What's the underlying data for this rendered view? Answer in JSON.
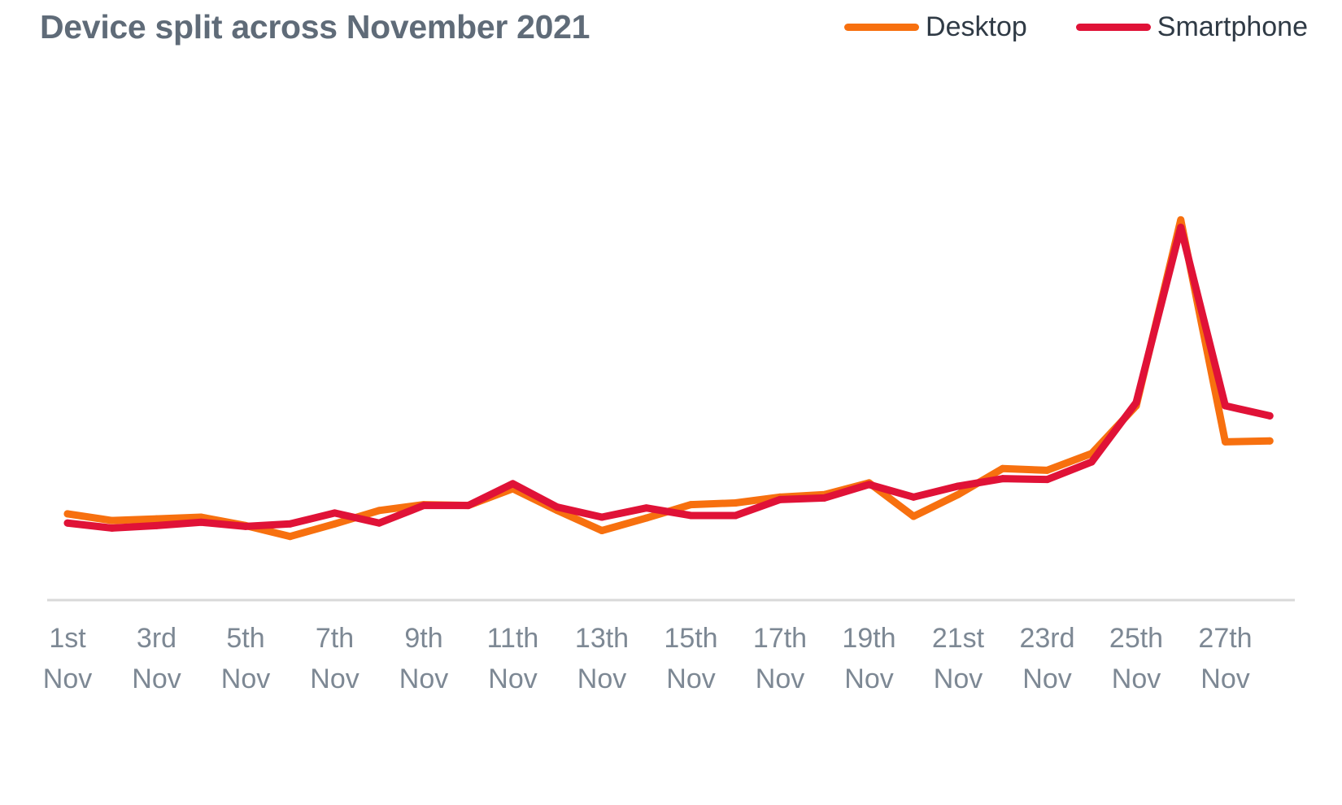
{
  "chart_data": {
    "type": "line",
    "title": "Device split across November 2021",
    "xlabel": "",
    "ylabel": "",
    "legend_position": "top-right",
    "grid": false,
    "x": [
      1,
      2,
      3,
      4,
      5,
      6,
      7,
      8,
      9,
      10,
      11,
      12,
      13,
      14,
      15,
      16,
      17,
      18,
      19,
      20,
      21,
      22,
      23,
      24,
      25,
      26,
      27,
      28
    ],
    "tick_labels": [
      {
        "day": 1,
        "line1": "1st",
        "line2": "Nov"
      },
      {
        "day": 3,
        "line1": "3rd",
        "line2": "Nov"
      },
      {
        "day": 5,
        "line1": "5th",
        "line2": "Nov"
      },
      {
        "day": 7,
        "line1": "7th",
        "line2": "Nov"
      },
      {
        "day": 9,
        "line1": "9th",
        "line2": "Nov"
      },
      {
        "day": 11,
        "line1": "11th",
        "line2": "Nov"
      },
      {
        "day": 13,
        "line1": "13th",
        "line2": "Nov"
      },
      {
        "day": 15,
        "line1": "15th",
        "line2": "Nov"
      },
      {
        "day": 17,
        "line1": "17th",
        "line2": "Nov"
      },
      {
        "day": 19,
        "line1": "19th",
        "line2": "Nov"
      },
      {
        "day": 21,
        "line1": "21st",
        "line2": "Nov"
      },
      {
        "day": 23,
        "line1": "23rd",
        "line2": "Nov"
      },
      {
        "day": 25,
        "line1": "25th",
        "line2": "Nov"
      },
      {
        "day": 27,
        "line1": "27th",
        "line2": "Nov"
      }
    ],
    "xlim": [
      0.5,
      28.5
    ],
    "ylim": [
      0,
      460
    ],
    "series": [
      {
        "name": "Desktop",
        "color": "#f7700f",
        "values": [
          103,
          95,
          97,
          99,
          89,
          76,
          91,
          107,
          114,
          113,
          133,
          107,
          83,
          98,
          114,
          116,
          123,
          126,
          140,
          100,
          126,
          157,
          155,
          175,
          232,
          454,
          189,
          190
        ]
      },
      {
        "name": "Smartphone",
        "color": "#e01237",
        "values": [
          92,
          86,
          89,
          93,
          88,
          91,
          104,
          92,
          113,
          113,
          139,
          111,
          99,
          110,
          101,
          101,
          120,
          122,
          138,
          123,
          136,
          145,
          144,
          165,
          236,
          445,
          232,
          220
        ]
      }
    ]
  }
}
